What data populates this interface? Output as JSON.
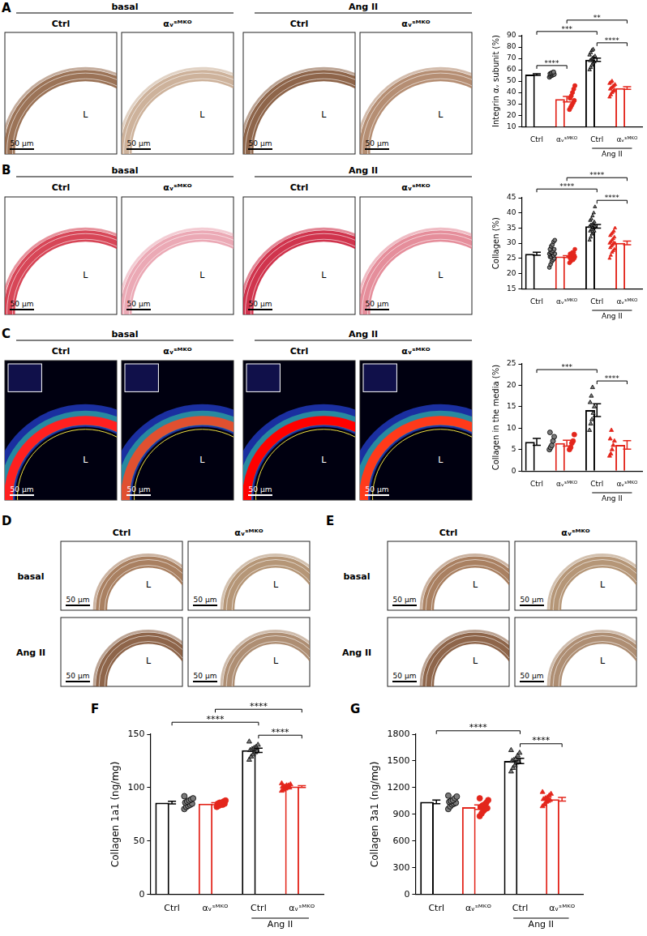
{
  "panels": [
    {
      "label": "A",
      "headers": [
        "basal",
        "Ang II"
      ],
      "columns": [
        "Ctrl",
        "αᵥˢᴹᴷᴼ",
        "Ctrl",
        "αᵥˢᴹᴷᴼ"
      ],
      "images": [
        {
          "color": "#8a5a3a",
          "background": "#ffffff",
          "lumen": "L",
          "scale_bar": "50 μm"
        },
        {
          "color": "#c4a58a",
          "background": "#ffffff",
          "lumen": "L",
          "scale_bar": "50 μm"
        },
        {
          "color": "#7a4a2a",
          "background": "#ffffff",
          "lumen": "L",
          "scale_bar": "50 μm"
        },
        {
          "color": "#a87a5a",
          "background": "#ffffff",
          "lumen": "L",
          "scale_bar": "50 μm"
        }
      ]
    },
    {
      "label": "B",
      "headers": [
        "basal",
        "Ang II"
      ],
      "columns": [
        "Ctrl",
        "αᵥˢᴹᴷᴼ",
        "Ctrl",
        "αᵥˢᴹᴷᴼ"
      ],
      "images": [
        {
          "color": "#d0263a",
          "background": "#ffffff",
          "lumen": "L",
          "scale_bar": "50 μm"
        },
        {
          "color": "#e89aa8",
          "background": "#ffffff",
          "lumen": "L",
          "scale_bar": "50 μm"
        },
        {
          "color": "#c8102e",
          "background": "#ffffff",
          "lumen": "L",
          "scale_bar": "50 μm"
        },
        {
          "color": "#e07a8a",
          "background": "#ffffff",
          "lumen": "L",
          "scale_bar": "50 μm"
        }
      ]
    },
    {
      "label": "C",
      "headers": [
        "basal",
        "Ang II"
      ],
      "columns": [
        "Ctrl",
        "αᵥˢᴹᴷᴼ",
        "Ctrl",
        "αᵥˢᴹᴷᴼ"
      ],
      "images": [
        {
          "color": "#ff2020",
          "background": "#000010",
          "lumen": "L",
          "scale_bar": "50 μm"
        },
        {
          "color": "#e05030",
          "background": "#000010",
          "lumen": "L",
          "scale_bar": "50 μm"
        },
        {
          "color": "#ff0000",
          "background": "#000010",
          "lumen": "L",
          "scale_bar": "50 μm"
        },
        {
          "color": "#ff3a1a",
          "background": "#000010",
          "lumen": "L",
          "scale_bar": "50 μm"
        }
      ]
    },
    {
      "label": "D",
      "rows": [
        "basal",
        "Ang II"
      ],
      "columns": [
        "Ctrl",
        "αᵥˢᴹᴷᴼ"
      ],
      "images": [
        {
          "color": "#9a6a45",
          "background": "#ffffff",
          "lumen": "L",
          "scale_bar": "50 μm"
        },
        {
          "color": "#a8845f",
          "background": "#ffffff",
          "lumen": "L",
          "scale_bar": "50 μm"
        },
        {
          "color": "#7a4a2a",
          "background": "#ffffff",
          "lumen": "L",
          "scale_bar": "50 μm"
        },
        {
          "color": "#a07a5a",
          "background": "#ffffff",
          "lumen": "L",
          "scale_bar": "50 μm"
        }
      ]
    },
    {
      "label": "E",
      "rows": [
        "basal",
        "Ang II"
      ],
      "columns": [
        "Ctrl",
        "αᵥˢᴹᴷᴼ"
      ],
      "images": [
        {
          "color": "#9a6a45",
          "background": "#ffffff",
          "lumen": "L",
          "scale_bar": "50 μm"
        },
        {
          "color": "#a8845f",
          "background": "#ffffff",
          "lumen": "L",
          "scale_bar": "50 μm"
        },
        {
          "color": "#7a4a2a",
          "background": "#ffffff",
          "lumen": "L",
          "scale_bar": "50 μm"
        },
        {
          "color": "#a07a5a",
          "background": "#ffffff",
          "lumen": "L",
          "scale_bar": "50 μm"
        }
      ]
    }
  ],
  "chart_data": [
    {
      "type": "bar",
      "ylabel": "Integrin αᵥ subunit (%)",
      "categories": [
        "Ctrl",
        "αᵥˢᴹᴷᴼ",
        "Ctrl",
        "αᵥˢᴹᴷᴼ"
      ],
      "values": [
        55.8,
        34.2,
        68.8,
        43.9
      ],
      "errors": [
        0.7,
        2.4,
        1.5,
        1.2
      ],
      "points": [
        [
          53.5,
          54.5,
          55,
          55.5,
          56,
          56.5,
          57,
          57.5,
          58
        ],
        [
          25,
          27,
          29,
          31,
          33,
          35,
          37,
          40,
          43,
          46
        ],
        [
          60,
          62,
          64,
          66,
          67,
          68,
          69,
          70,
          71,
          72,
          73,
          75,
          77,
          78
        ],
        [
          36,
          38,
          40,
          41,
          42,
          43,
          44,
          45,
          46,
          47,
          48,
          49,
          50
        ]
      ],
      "colors": [
        "#000000",
        "#e3261c",
        "#000000",
        "#e3261c"
      ],
      "groups": [
        {
          "label": "Ang II",
          "from": 2,
          "to": 3
        }
      ],
      "significance": [
        {
          "from": 0,
          "to": 1,
          "label": "****"
        },
        {
          "from": 0,
          "to": 2,
          "label": "***"
        },
        {
          "from": 2,
          "to": 3,
          "label": "****"
        },
        {
          "from": 1,
          "to": 3,
          "label": "**"
        }
      ],
      "ylim": [
        10,
        90
      ],
      "yticks": [
        10,
        20,
        30,
        40,
        50,
        60,
        70,
        80,
        90
      ],
      "grid": false
    },
    {
      "type": "bar",
      "ylabel": "Collagen (%)",
      "categories": [
        "Ctrl",
        "αᵥˢᴹᴷᴼ",
        "Ctrl",
        "αᵥˢᴹᴷᴼ"
      ],
      "values": [
        26.5,
        25.6,
        35.6,
        30.1
      ],
      "errors": [
        0.5,
        0.3,
        0.6,
        0.6
      ],
      "points": [
        [
          22,
          23,
          24,
          24.5,
          25,
          25.5,
          25.5,
          26,
          26,
          26.5,
          26.5,
          27,
          27,
          27.5,
          28,
          28,
          29,
          29.5,
          30.5,
          31
        ],
        [
          23.5,
          24,
          24.5,
          24.5,
          25,
          25,
          25,
          25.5,
          25.5,
          25.5,
          25.5,
          26,
          26,
          26,
          26,
          26.5,
          26.5,
          27,
          27,
          28
        ],
        [
          31,
          32,
          33,
          33.5,
          34,
          34,
          34.5,
          35,
          35,
          35.5,
          35.5,
          36,
          36,
          36.5,
          37,
          37.5,
          38,
          39,
          40,
          42
        ],
        [
          25,
          26,
          27,
          27.5,
          28,
          28.5,
          29,
          29.5,
          30,
          30,
          30,
          30.5,
          31,
          31.5,
          32,
          32.5,
          33,
          33.5,
          34,
          35
        ]
      ],
      "colors": [
        "#000000",
        "#e3261c",
        "#000000",
        "#e3261c"
      ],
      "groups": [
        {
          "label": "Ang II",
          "from": 2,
          "to": 3
        }
      ],
      "significance": [
        {
          "from": 0,
          "to": 2,
          "label": "****"
        },
        {
          "from": 1,
          "to": 3,
          "label": "****"
        },
        {
          "from": 2,
          "to": 3,
          "label": "****"
        }
      ],
      "ylim": [
        15,
        45
      ],
      "yticks": [
        15,
        20,
        25,
        30,
        35,
        40,
        45
      ],
      "grid": false
    },
    {
      "type": "bar",
      "ylabel": "Collagen in the media (%)",
      "categories": [
        "Ctrl",
        "αᵥˢᴹᴷᴼ",
        "Ctrl",
        "αᵥˢᴹᴷᴼ"
      ],
      "values": [
        6.8,
        6.5,
        14.2,
        6.1
      ],
      "errors": [
        0.8,
        0.7,
        1.5,
        1.0
      ],
      "points": [
        [
          5,
          5.5,
          6,
          7,
          8,
          9
        ],
        [
          5,
          5.5,
          6.5,
          7,
          8.5
        ],
        [
          9.5,
          11,
          12,
          13.5,
          15,
          16,
          17.5,
          19.5
        ],
        [
          3.5,
          4,
          5,
          6,
          7,
          7.5,
          9.5
        ]
      ],
      "colors": [
        "#000000",
        "#e3261c",
        "#000000",
        "#e3261c"
      ],
      "groups": [
        {
          "label": "Ang II",
          "from": 2,
          "to": 3
        }
      ],
      "significance": [
        {
          "from": 0,
          "to": 2,
          "label": "***"
        },
        {
          "from": 2,
          "to": 3,
          "label": "****"
        }
      ],
      "ylim": [
        0,
        25
      ],
      "yticks": [
        0,
        5,
        10,
        15,
        20,
        25
      ],
      "grid": false
    },
    {
      "type": "bar",
      "panel": "F",
      "ylabel": "Collagen 1a1 (ng/mg)",
      "categories": [
        "Ctrl",
        "αᵥˢᴹᴷᴼ",
        "Ctrl",
        "αᵥˢᴹᴷᴼ"
      ],
      "values": [
        86,
        85,
        135,
        101
      ],
      "errors": [
        1.2,
        1.0,
        2.0,
        0.8
      ],
      "points": [
        [
          80,
          82,
          83,
          84,
          85,
          86,
          87,
          88,
          89,
          90,
          92
        ],
        [
          82,
          83,
          84,
          84,
          85,
          85,
          86,
          86,
          87,
          88
        ],
        [
          126,
          129,
          131,
          133,
          134,
          135,
          136,
          137,
          138,
          140,
          143
        ],
        [
          97,
          98,
          99,
          100,
          100,
          101,
          101,
          102,
          102,
          103,
          104
        ]
      ],
      "colors": [
        "#000000",
        "#e3261c",
        "#000000",
        "#e3261c"
      ],
      "groups": [
        {
          "label": "Ang II",
          "from": 2,
          "to": 3
        }
      ],
      "significance": [
        {
          "from": 0,
          "to": 2,
          "label": "****"
        },
        {
          "from": 1,
          "to": 3,
          "label": "****"
        },
        {
          "from": 2,
          "to": 3,
          "label": "****"
        }
      ],
      "ylim": [
        0,
        150
      ],
      "yticks": [
        0,
        50,
        100,
        150
      ],
      "grid": false
    },
    {
      "type": "bar",
      "panel": "G",
      "ylabel": "Collagen 3a1 (ng/mg)",
      "categories": [
        "Ctrl",
        "αᵥˢᴹᴷᴼ",
        "Ctrl",
        "αᵥˢᴹᴷᴼ"
      ],
      "values": [
        1040,
        980,
        1500,
        1070
      ],
      "errors": [
        20,
        25,
        30,
        20
      ],
      "points": [
        [
          960,
          990,
          1010,
          1020,
          1030,
          1040,
          1050,
          1060,
          1080,
          1100,
          1110
        ],
        [
          880,
          910,
          940,
          960,
          970,
          980,
          1000,
          1010,
          1030,
          1060,
          1080
        ],
        [
          1380,
          1420,
          1450,
          1480,
          1490,
          1500,
          1510,
          1520,
          1560,
          1590,
          1620
        ],
        [
          990,
          1010,
          1040,
          1050,
          1060,
          1070,
          1080,
          1090,
          1110,
          1130,
          1150
        ]
      ],
      "colors": [
        "#000000",
        "#e3261c",
        "#000000",
        "#e3261c"
      ],
      "groups": [
        {
          "label": "Ang II",
          "from": 2,
          "to": 3
        }
      ],
      "significance": [
        {
          "from": 0,
          "to": 2,
          "label": "****"
        },
        {
          "from": 2,
          "to": 3,
          "label": "****"
        }
      ],
      "ylim": [
        0,
        1800
      ],
      "yticks": [
        0,
        300,
        600,
        900,
        1200,
        1500,
        1800
      ],
      "grid": false
    }
  ]
}
